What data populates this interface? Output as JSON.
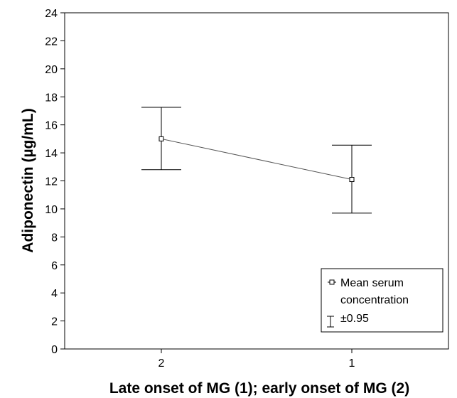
{
  "chart_data": {
    "type": "line",
    "title": "",
    "xlabel": "Late onset of MG (1); early onset of MG (2)",
    "ylabel": "Adiponectin (µg/mL)",
    "categories": [
      "2",
      "1"
    ],
    "series": [
      {
        "name": "Mean serum concentration",
        "values": [
          15.0,
          12.1
        ],
        "upper": [
          17.25,
          14.55
        ],
        "lower": [
          12.8,
          9.7
        ]
      }
    ],
    "errorbar_label": "±0.95",
    "ylim": [
      0,
      24
    ],
    "yticks": [
      0,
      2,
      4,
      6,
      8,
      10,
      12,
      14,
      16,
      18,
      20,
      22,
      24
    ],
    "grid": false,
    "legend_position": "bottom-right",
    "colors": {
      "line": "#555555",
      "errorbar": "#000000",
      "marker": "#000000"
    }
  }
}
